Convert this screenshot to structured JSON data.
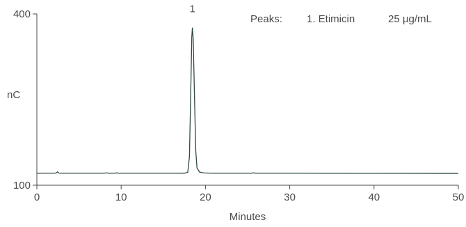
{
  "chart_data": {
    "type": "line",
    "xlabel": "Minutes",
    "ylabel": "nC",
    "xlim": [
      0,
      50
    ],
    "ylim": [
      100,
      400
    ],
    "x_ticks": [
      0,
      10,
      20,
      30,
      40,
      50
    ],
    "y_ticks": [
      100,
      400
    ],
    "grid": false,
    "line_color": "#2f4a40",
    "legend": {
      "heading": "Peaks:",
      "entries": [
        {
          "label": "1. Etimicin",
          "concentration": "25 µg/mL"
        }
      ]
    },
    "peak_labels": [
      {
        "text": "1",
        "x": 18.45,
        "y": 403
      }
    ],
    "series": [
      {
        "values_xy": [
          [
            0.0,
            121.0
          ],
          [
            2.0,
            121.0
          ],
          [
            2.3,
            121.5
          ],
          [
            2.45,
            123.5
          ],
          [
            2.6,
            121.3
          ],
          [
            3.0,
            121.0
          ],
          [
            8.0,
            121.0
          ],
          [
            8.3,
            121.6
          ],
          [
            8.5,
            121.0
          ],
          [
            9.3,
            121.0
          ],
          [
            9.5,
            121.7
          ],
          [
            9.7,
            121.0
          ],
          [
            16.5,
            121.0
          ],
          [
            17.5,
            121.1
          ],
          [
            17.9,
            122.5
          ],
          [
            18.1,
            150.0
          ],
          [
            18.25,
            260.0
          ],
          [
            18.38,
            360.0
          ],
          [
            18.45,
            376.0
          ],
          [
            18.55,
            355.0
          ],
          [
            18.7,
            255.0
          ],
          [
            18.85,
            160.0
          ],
          [
            19.0,
            130.0
          ],
          [
            19.3,
            123.0
          ],
          [
            19.8,
            121.5
          ],
          [
            21.0,
            121.0
          ],
          [
            25.5,
            121.0
          ],
          [
            25.7,
            121.8
          ],
          [
            25.9,
            121.0
          ],
          [
            30.0,
            121.0
          ],
          [
            40.0,
            120.9
          ],
          [
            50.0,
            120.8
          ]
        ]
      }
    ]
  }
}
